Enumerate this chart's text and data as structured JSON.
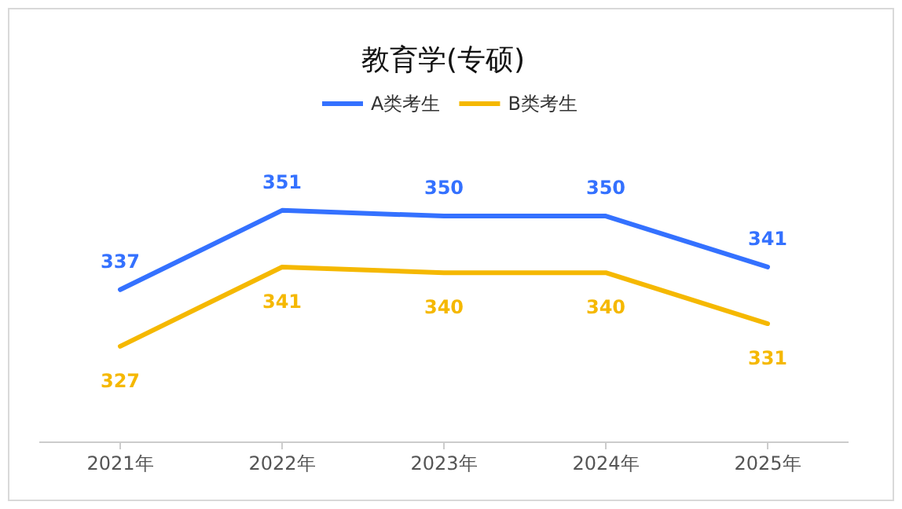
{
  "chart_data": {
    "type": "line",
    "title": "教育学(专硕)",
    "categories": [
      "2021年",
      "2022年",
      "2023年",
      "2024年",
      "2025年"
    ],
    "series": [
      {
        "name": "A类考生",
        "color": "#3471ff",
        "values": [
          337,
          351,
          350,
          350,
          341
        ]
      },
      {
        "name": "B类考生",
        "color": "#f5b800",
        "values": [
          327,
          341,
          340,
          340,
          331
        ]
      }
    ],
    "data_labels": true,
    "relative": false,
    "legend": "top",
    "marker": "none",
    "line_style": "solid"
  }
}
